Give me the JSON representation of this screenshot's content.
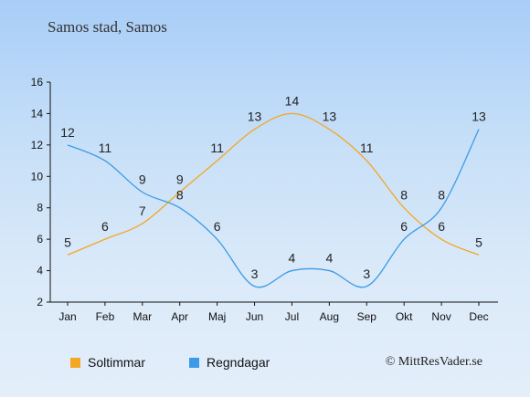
{
  "title": "Samos stad, Samos",
  "copyright": "© MittResVader.se",
  "chart_data": {
    "type": "line",
    "categories": [
      "Jan",
      "Feb",
      "Mar",
      "Apr",
      "Maj",
      "Jun",
      "Jul",
      "Aug",
      "Sep",
      "Okt",
      "Nov",
      "Dec"
    ],
    "ylim": [
      2,
      16
    ],
    "yticks": [
      2,
      4,
      6,
      8,
      10,
      12,
      14,
      16
    ],
    "grid": false,
    "legend_position": "bottom-left",
    "series": [
      {
        "name": "Soltimmar",
        "color": "#f5a623",
        "values": [
          5,
          6,
          7,
          9,
          11,
          13,
          14,
          13,
          11,
          8,
          6,
          5
        ]
      },
      {
        "name": "Regndagar",
        "color": "#3c9be6",
        "values": [
          12,
          11,
          9,
          8,
          6,
          3,
          4,
          4,
          3,
          6,
          8,
          13
        ]
      }
    ]
  }
}
